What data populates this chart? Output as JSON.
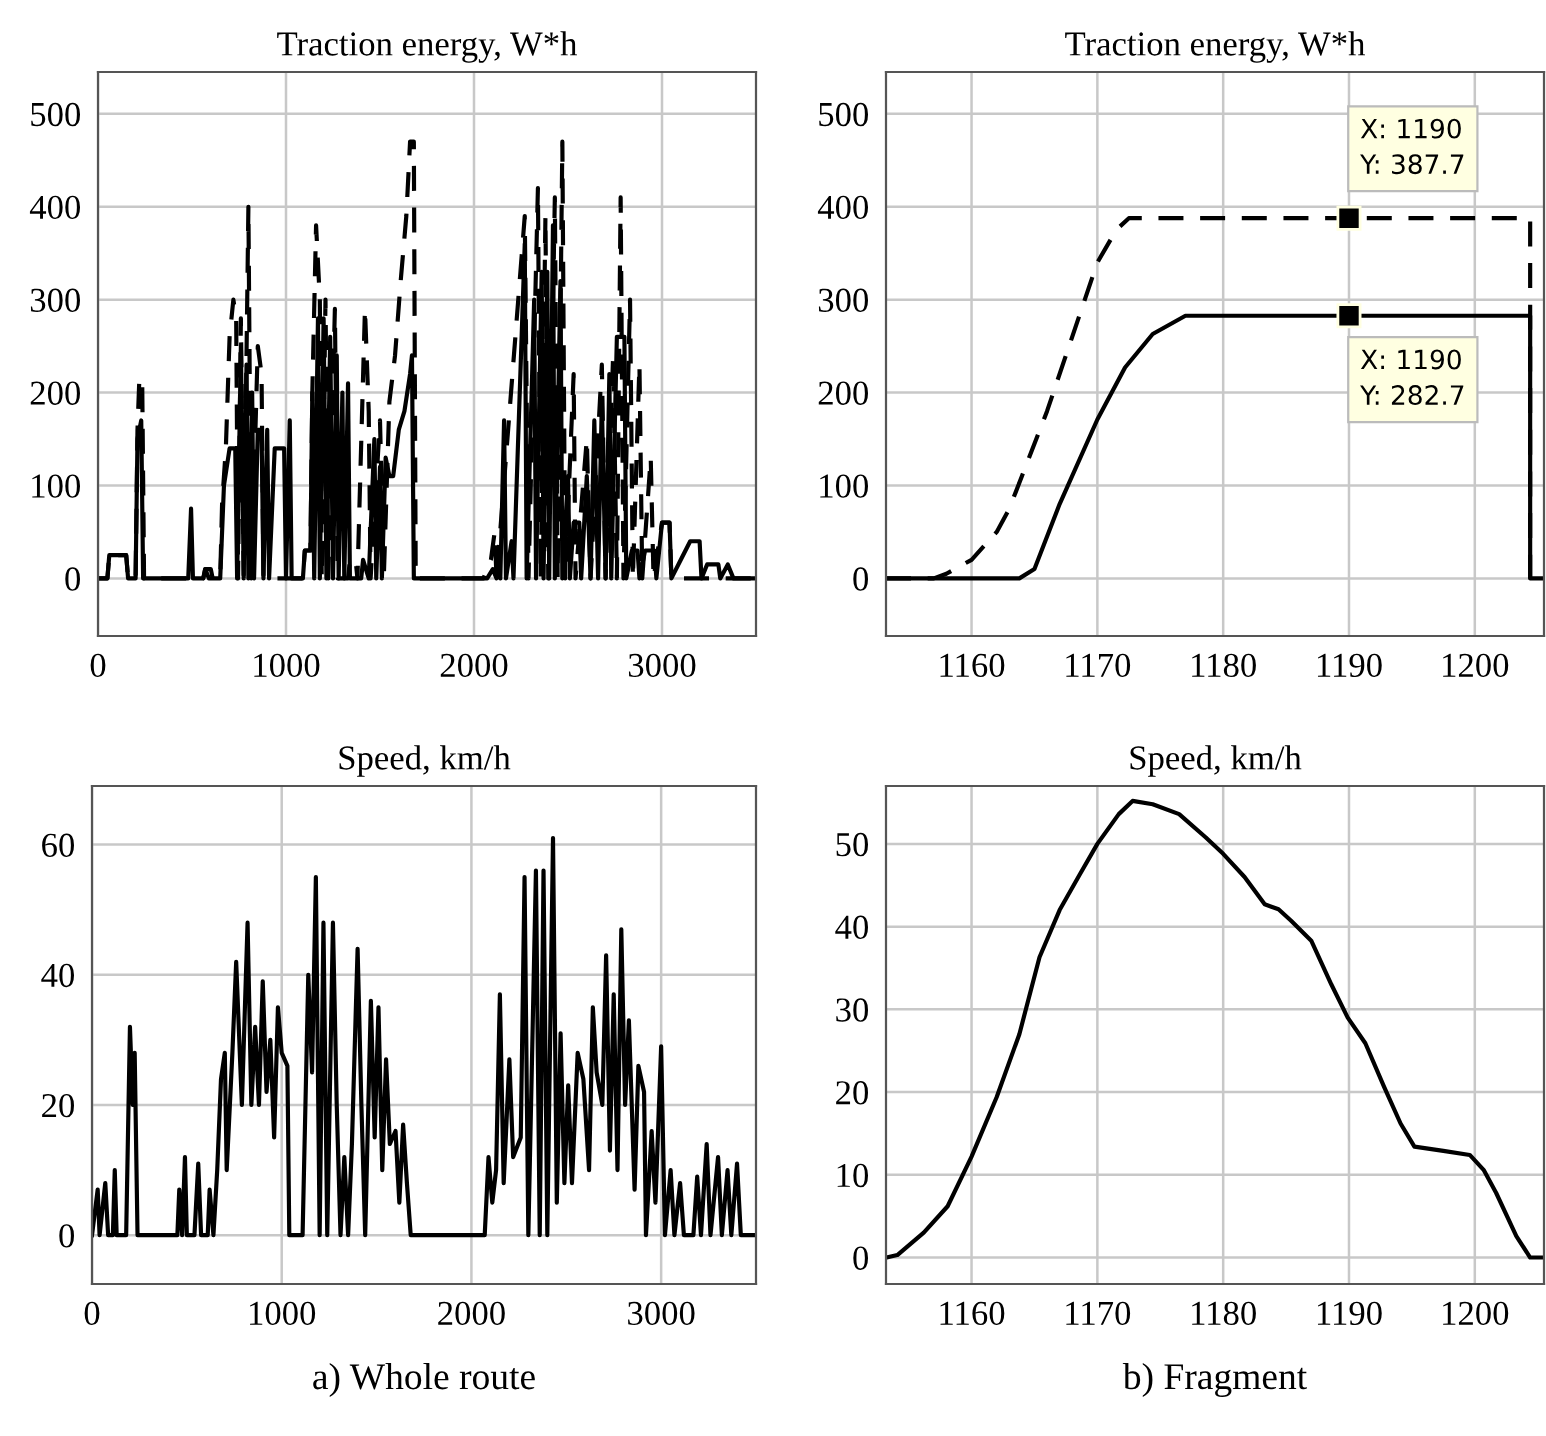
{
  "chart_data": [
    {
      "type": "line",
      "title": "Traction energy, W*h",
      "xlim": [
        0,
        3500
      ],
      "xticks": [
        0,
        1000,
        2000,
        3000
      ],
      "ylim": [
        -62,
        545
      ],
      "yticks": [
        0,
        100,
        200,
        300,
        400,
        500
      ],
      "grid": true,
      "series": [
        {
          "color": "#000000",
          "line_style": "dashed",
          "x": [
            0,
            50,
            60,
            150,
            160,
            200,
            210,
            220,
            235,
            245,
            560,
            570,
            600,
            610,
            650,
            660,
            680,
            700,
            720,
            735,
            745,
            760,
            775,
            800,
            815,
            850,
            870,
            880,
            1090,
            1100,
            1130,
            1140,
            1160,
            1180,
            1190,
            1210,
            1225,
            1260,
            1275,
            1330,
            1340,
            1370,
            1380,
            1420,
            1440,
            1450,
            1500,
            1520,
            1550,
            1580,
            1610,
            1640,
            1660,
            1680,
            1690,
            2050,
            2090,
            2110,
            2120,
            2270,
            2290,
            2340,
            2355,
            2380,
            2395,
            2430,
            2445,
            2470,
            2485,
            2530,
            2540,
            2600,
            2620,
            2680,
            2700,
            2740,
            2760,
            2780,
            2795,
            2830,
            2845,
            2880,
            2895,
            2940,
            2955,
            3000,
            3040,
            3050,
            3500
          ],
          "values": [
            0,
            0,
            25,
            25,
            0,
            0,
            160,
            215,
            215,
            0,
            0,
            10,
            10,
            0,
            0,
            80,
            140,
            260,
            300,
            280,
            0,
            280,
            0,
            400,
            0,
            250,
            220,
            0,
            0,
            30,
            30,
            200,
            380,
            300,
            0,
            300,
            0,
            290,
            0,
            0,
            20,
            20,
            0,
            290,
            180,
            0,
            170,
            0,
            190,
            240,
            320,
            390,
            470,
            470,
            0,
            0,
            20,
            50,
            0,
            390,
            0,
            420,
            0,
            390,
            0,
            410,
            0,
            470,
            0,
            220,
            0,
            150,
            0,
            230,
            0,
            240,
            0,
            410,
            0,
            300,
            0,
            230,
            0,
            130,
            0,
            60,
            60,
            0,
            0
          ]
        },
        {
          "color": "#000000",
          "line_style": "solid",
          "x": [
            0,
            50,
            60,
            150,
            160,
            200,
            210,
            230,
            240,
            480,
            495,
            505,
            560,
            570,
            590,
            650,
            670,
            700,
            730,
            740,
            760,
            775,
            790,
            800,
            820,
            830,
            850,
            870,
            880,
            900,
            910,
            940,
            990,
            1000,
            1020,
            1030,
            1090,
            1100,
            1130,
            1140,
            1150,
            1170,
            1180,
            1200,
            1215,
            1235,
            1250,
            1270,
            1280,
            1300,
            1310,
            1330,
            1340,
            1400,
            1410,
            1440,
            1470,
            1480,
            1500,
            1510,
            1530,
            1550,
            1570,
            1600,
            1630,
            1660,
            1670,
            1680,
            2070,
            2100,
            2120,
            2130,
            2140,
            2160,
            2170,
            2200,
            2210,
            2270,
            2280,
            2320,
            2330,
            2360,
            2370,
            2390,
            2400,
            2420,
            2430,
            2460,
            2470,
            2500,
            2510,
            2530,
            2560,
            2570,
            2600,
            2620,
            2640,
            2660,
            2680,
            2700,
            2720,
            2730,
            2760,
            2800,
            2810,
            2840,
            2870,
            2880,
            2910,
            2960,
            2970,
            3000,
            3040,
            3050,
            3100,
            3150,
            3200,
            3210,
            3240,
            3300,
            3310,
            3350,
            3380,
            3500
          ],
          "values": [
            0,
            0,
            25,
            25,
            0,
            0,
            150,
            170,
            0,
            0,
            75,
            0,
            0,
            10,
            0,
            0,
            100,
            140,
            140,
            0,
            250,
            0,
            230,
            0,
            200,
            0,
            160,
            160,
            0,
            160,
            0,
            140,
            140,
            0,
            170,
            0,
            0,
            30,
            30,
            200,
            0,
            280,
            0,
            280,
            0,
            260,
            0,
            240,
            0,
            200,
            0,
            210,
            0,
            0,
            20,
            0,
            150,
            0,
            120,
            0,
            130,
            110,
            110,
            160,
            180,
            220,
            240,
            0,
            0,
            10,
            0,
            20,
            0,
            170,
            0,
            40,
            0,
            360,
            0,
            300,
            0,
            330,
            0,
            330,
            0,
            380,
            0,
            320,
            0,
            110,
            0,
            60,
            60,
            0,
            110,
            0,
            170,
            0,
            190,
            0,
            220,
            0,
            260,
            260,
            0,
            30,
            30,
            0,
            30,
            30,
            0,
            60,
            60,
            0,
            20,
            40,
            40,
            0,
            15,
            15,
            0,
            15,
            0,
            0
          ]
        }
      ]
    },
    {
      "type": "line",
      "title": "Traction energy, W*h",
      "xlim": [
        1153.2,
        1205.5
      ],
      "xticks": [
        1160,
        1170,
        1180,
        1190,
        1200
      ],
      "ylim": [
        -62,
        545
      ],
      "yticks": [
        0,
        100,
        200,
        300,
        400,
        500
      ],
      "grid": true,
      "series": [
        {
          "color": "#000000",
          "line_style": "dashed",
          "x": [
            1153.2,
            1157,
            1158,
            1160,
            1162,
            1163,
            1164,
            1166,
            1168,
            1170,
            1171.5,
            1172.5,
            1190,
            1204.4,
            1204.4
          ],
          "values": [
            0,
            0,
            5,
            20,
            50,
            75,
            110,
            180,
            260,
            340,
            375,
            387.7,
            387.7,
            387.7,
            0
          ]
        },
        {
          "color": "#000000",
          "line_style": "solid",
          "x": [
            1153.2,
            1163.8,
            1165,
            1167,
            1170,
            1172.2,
            1174.4,
            1177,
            1190,
            1204.4,
            1204.4,
            1205.5
          ],
          "values": [
            0,
            0,
            10,
            80,
            171,
            227,
            263,
            282.7,
            282.7,
            282.7,
            0,
            0
          ]
        }
      ],
      "annotations": [
        {
          "text": "X: 1190\nY: 387.7",
          "x": 1190,
          "y": 387.7
        },
        {
          "text": "X: 1190\nY: 282.7",
          "x": 1190,
          "y": 282.7
        }
      ]
    },
    {
      "type": "line",
      "title": "Speed, km/h",
      "xlim": [
        0,
        3500
      ],
      "xticks": [
        0,
        1000,
        2000,
        3000
      ],
      "ylim": [
        -7.5,
        69
      ],
      "yticks": [
        0,
        20,
        40,
        60
      ],
      "grid": true,
      "series": [
        {
          "color": "#000000",
          "line_style": "solid",
          "x": [
            0,
            30,
            40,
            70,
            85,
            110,
            120,
            130,
            180,
            200,
            215,
            225,
            240,
            450,
            460,
            475,
            490,
            500,
            540,
            560,
            575,
            610,
            620,
            640,
            660,
            680,
            700,
            710,
            740,
            760,
            790,
            820,
            840,
            860,
            880,
            900,
            920,
            940,
            960,
            980,
            1000,
            1030,
            1040,
            1110,
            1140,
            1160,
            1180,
            1200,
            1220,
            1240,
            1270,
            1290,
            1310,
            1330,
            1350,
            1370,
            1400,
            1420,
            1440,
            1470,
            1490,
            1510,
            1530,
            1550,
            1570,
            1600,
            1620,
            1640,
            1660,
            1680,
            2070,
            2090,
            2110,
            2130,
            2150,
            2170,
            2200,
            2220,
            2260,
            2280,
            2300,
            2340,
            2360,
            2380,
            2400,
            2430,
            2450,
            2470,
            2490,
            2510,
            2530,
            2560,
            2590,
            2620,
            2640,
            2660,
            2690,
            2710,
            2730,
            2750,
            2770,
            2790,
            2810,
            2830,
            2860,
            2880,
            2910,
            2920,
            2950,
            2970,
            3000,
            3020,
            3050,
            3070,
            3100,
            3120,
            3170,
            3190,
            3210,
            3240,
            3260,
            3300,
            3320,
            3350,
            3370,
            3400,
            3420,
            3500
          ],
          "values": [
            0,
            7,
            0,
            8,
            0,
            0,
            10,
            0,
            0,
            32,
            20,
            28,
            0,
            0,
            7,
            0,
            12,
            0,
            0,
            11,
            0,
            0,
            7,
            0,
            10,
            24,
            28,
            10,
            28,
            42,
            20,
            48,
            20,
            32,
            20,
            39,
            22,
            30,
            15,
            35,
            28,
            26,
            0,
            0,
            40,
            25,
            55,
            0,
            48,
            0,
            48,
            20,
            0,
            12,
            0,
            14,
            44,
            20,
            0,
            36,
            15,
            35,
            10,
            27,
            14,
            16,
            5,
            17,
            8,
            0,
            0,
            12,
            5,
            10,
            37,
            8,
            27,
            12,
            15,
            55,
            0,
            56,
            0,
            56,
            0,
            61,
            5,
            31,
            8,
            23,
            8,
            28,
            24,
            10,
            35,
            25,
            20,
            43,
            13,
            37,
            10,
            47,
            20,
            33,
            7,
            26,
            22,
            0,
            16,
            5,
            29,
            0,
            10,
            0,
            8,
            0,
            0,
            9,
            0,
            14,
            0,
            12,
            0,
            10,
            0,
            11,
            0,
            0
          ]
        }
      ],
      "annotations": [
        "a) Whole route"
      ]
    },
    {
      "type": "line",
      "title": "Speed, km/h",
      "xlim": [
        1153.2,
        1205.5
      ],
      "xticks": [
        1160,
        1170,
        1180,
        1190,
        1200
      ],
      "ylim": [
        -3.2,
        57
      ],
      "yticks": [
        0,
        10,
        20,
        30,
        40,
        50
      ],
      "grid": true,
      "series": [
        {
          "color": "#000000",
          "line_style": "solid",
          "x": [
            1153.2,
            1154.1,
            1156.2,
            1158.1,
            1160,
            1162,
            1163.8,
            1165.4,
            1167,
            1168.6,
            1170,
            1171.7,
            1172.8,
            1174.4,
            1176.5,
            1178.6,
            1180,
            1181.7,
            1183.3,
            1184.4,
            1185.4,
            1187,
            1188.6,
            1189.9,
            1191.3,
            1192.8,
            1194.1,
            1195.2,
            1197.5,
            1199.6,
            1200.7,
            1201.7,
            1203.3,
            1204.4,
            1205.5
          ],
          "values": [
            0,
            0.3,
            3,
            6.2,
            12.2,
            19.4,
            27,
            36.3,
            42,
            46.3,
            50,
            53.6,
            55.2,
            54.8,
            53.6,
            50.8,
            48.8,
            46,
            42.7,
            42.1,
            40.7,
            38.3,
            33,
            29,
            25.9,
            20.6,
            16.2,
            13.4,
            12.9,
            12.4,
            10.6,
            7.8,
            2.6,
            0,
            0
          ]
        }
      ],
      "annotations": [
        "b) Fragment"
      ]
    }
  ]
}
